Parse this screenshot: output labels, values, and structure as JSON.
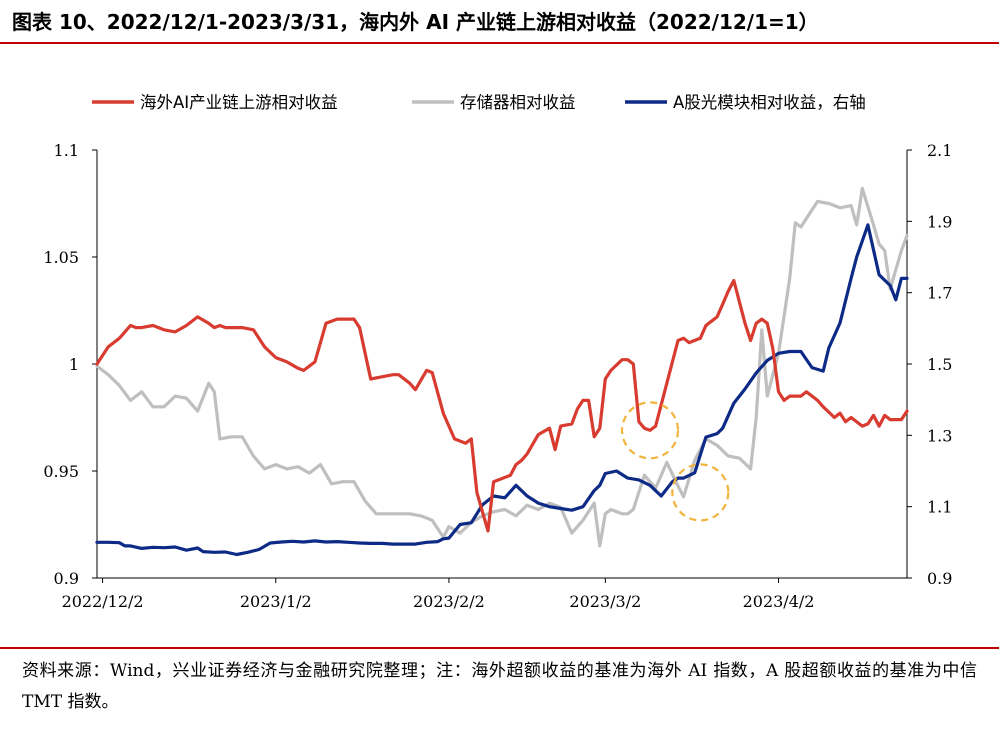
{
  "header": {
    "title": "图表 10、2022/12/1-2023/3/31，海内外 AI 产业链上游相对收益（2022/12/1=1）"
  },
  "footer": {
    "note": "资料来源：Wind，兴业证券经济与金融研究院整理；注：海外超额收益的基准为海外 AI 指数，A 股超额收益的基准为中信 TMT 指数。"
  },
  "colors": {
    "overseas": "#d83b2f",
    "storage": "#bfbfbf",
    "optical": "#0c2a86",
    "accent_rule": "#c00000",
    "highlight_circle": "#f2b33d"
  },
  "chart_data": {
    "type": "line",
    "legend_position": "top",
    "grid": false,
    "x_range": [
      "2022-12-01",
      "2023-04-25"
    ],
    "x_tick_labels": [
      "2022/12/2",
      "2023/1/2",
      "2023/2/2",
      "2023/3/2",
      "2023/4/2"
    ],
    "x_tick_dates": [
      "2022-12-02",
      "2023-01-02",
      "2023-02-02",
      "2023-03-02",
      "2023-04-02"
    ],
    "y_left": {
      "min": 0.9,
      "max": 1.1,
      "ticks": [
        0.9,
        0.95,
        1,
        1.05,
        1.1
      ],
      "tick_labels": [
        "0.9",
        "0.95",
        "1",
        "1.05",
        "1.1"
      ]
    },
    "y_right": {
      "min": 0.9,
      "max": 2.1,
      "ticks": [
        0.9,
        1.1,
        1.3,
        1.5,
        1.7,
        1.9,
        2.1
      ],
      "tick_labels": [
        "0.9",
        "1.1",
        "1.3",
        "1.5",
        "1.7",
        "1.9",
        "2.1"
      ]
    },
    "series": [
      {
        "name": "海外AI产业链上游相对收益",
        "axis": "left",
        "color_key": "overseas",
        "x": [
          "2022-12-01",
          "2022-12-03",
          "2022-12-05",
          "2022-12-06",
          "2022-12-07",
          "2022-12-08",
          "2022-12-09",
          "2022-12-11",
          "2022-12-13",
          "2022-12-15",
          "2022-12-17",
          "2022-12-19",
          "2022-12-21",
          "2022-12-22",
          "2022-12-23",
          "2022-12-24",
          "2022-12-27",
          "2022-12-29",
          "2022-12-31",
          "2023-01-02",
          "2023-01-04",
          "2023-01-06",
          "2023-01-07",
          "2023-01-09",
          "2023-01-11",
          "2023-01-13",
          "2023-01-14",
          "2023-01-16",
          "2023-01-17",
          "2023-01-19",
          "2023-01-21",
          "2023-01-23",
          "2023-01-24",
          "2023-01-26",
          "2023-01-27",
          "2023-01-29",
          "2023-01-30",
          "2023-02-01",
          "2023-02-02",
          "2023-02-03",
          "2023-02-05",
          "2023-02-06",
          "2023-02-07",
          "2023-02-08",
          "2023-02-09",
          "2023-02-10",
          "2023-02-13",
          "2023-02-14",
          "2023-02-15",
          "2023-02-16",
          "2023-02-18",
          "2023-02-20",
          "2023-02-21",
          "2023-02-22",
          "2023-02-24",
          "2023-02-25",
          "2023-02-26",
          "2023-02-27",
          "2023-02-28",
          "2023-03-01",
          "2023-03-02",
          "2023-03-03",
          "2023-03-05",
          "2023-03-06",
          "2023-03-07",
          "2023-03-08",
          "2023-03-09",
          "2023-03-10",
          "2023-03-11",
          "2023-03-13",
          "2023-03-15",
          "2023-03-16",
          "2023-03-17",
          "2023-03-19",
          "2023-03-20",
          "2023-03-21",
          "2023-03-22",
          "2023-03-23",
          "2023-03-24",
          "2023-03-25",
          "2023-03-27",
          "2023-03-28",
          "2023-03-29",
          "2023-03-30",
          "2023-03-31",
          "2023-04-01",
          "2023-04-02",
          "2023-04-03",
          "2023-04-04",
          "2023-04-06",
          "2023-04-07",
          "2023-04-09",
          "2023-04-10",
          "2023-04-12",
          "2023-04-13",
          "2023-04-14",
          "2023-04-15",
          "2023-04-17",
          "2023-04-18",
          "2023-04-19",
          "2023-04-20",
          "2023-04-21",
          "2023-04-22",
          "2023-04-24",
          "2023-04-25"
        ],
        "values": [
          1.0,
          1.008,
          1.012,
          1.015,
          1.018,
          1.017,
          1.017,
          1.018,
          1.016,
          1.015,
          1.018,
          1.022,
          1.019,
          1.017,
          1.018,
          1.017,
          1.017,
          1.016,
          1.008,
          1.003,
          1.001,
          0.998,
          0.997,
          1.001,
          1.019,
          1.021,
          1.021,
          1.021,
          1.017,
          0.993,
          0.994,
          0.995,
          0.995,
          0.991,
          0.988,
          0.997,
          0.996,
          0.977,
          0.971,
          0.965,
          0.963,
          0.965,
          0.94,
          0.931,
          0.922,
          0.945,
          0.948,
          0.953,
          0.955,
          0.958,
          0.967,
          0.97,
          0.96,
          0.971,
          0.972,
          0.979,
          0.983,
          0.983,
          0.966,
          0.97,
          0.993,
          0.997,
          1.002,
          1.002,
          1.0,
          0.973,
          0.97,
          0.969,
          0.971,
          0.991,
          1.011,
          1.012,
          1.01,
          1.012,
          1.018,
          1.02,
          1.022,
          1.028,
          1.034,
          1.039,
          1.019,
          1.011,
          1.019,
          1.021,
          1.019,
          1.007,
          0.987,
          0.983,
          0.985,
          0.985,
          0.987,
          0.983,
          0.98,
          0.975,
          0.977,
          0.973,
          0.975,
          0.971,
          0.972,
          0.976,
          0.971,
          0.976,
          0.974,
          0.974,
          0.978
        ]
      },
      {
        "name": "存储器相对收益",
        "axis": "left",
        "color_key": "storage",
        "x": [
          "2022-12-01",
          "2022-12-03",
          "2022-12-05",
          "2022-12-07",
          "2022-12-09",
          "2022-12-11",
          "2022-12-13",
          "2022-12-15",
          "2022-12-17",
          "2022-12-19",
          "2022-12-21",
          "2022-12-22",
          "2022-12-23",
          "2022-12-25",
          "2022-12-27",
          "2022-12-29",
          "2022-12-31",
          "2023-01-02",
          "2023-01-04",
          "2023-01-06",
          "2023-01-08",
          "2023-01-10",
          "2023-01-12",
          "2023-01-14",
          "2023-01-16",
          "2023-01-18",
          "2023-01-20",
          "2023-01-22",
          "2023-01-24",
          "2023-01-26",
          "2023-01-28",
          "2023-01-30",
          "2023-02-01",
          "2023-02-02",
          "2023-02-04",
          "2023-02-06",
          "2023-02-08",
          "2023-02-10",
          "2023-02-12",
          "2023-02-14",
          "2023-02-16",
          "2023-02-18",
          "2023-02-20",
          "2023-02-22",
          "2023-02-24",
          "2023-02-26",
          "2023-02-28",
          "2023-03-01",
          "2023-03-02",
          "2023-03-03",
          "2023-03-05",
          "2023-03-06",
          "2023-03-07",
          "2023-03-09",
          "2023-03-11",
          "2023-03-13",
          "2023-03-15",
          "2023-03-16",
          "2023-03-18",
          "2023-03-20",
          "2023-03-22",
          "2023-03-24",
          "2023-03-26",
          "2023-03-28",
          "2023-03-29",
          "2023-03-30",
          "2023-03-31",
          "2023-04-01",
          "2023-04-02",
          "2023-04-04",
          "2023-04-05",
          "2023-04-06",
          "2023-04-08",
          "2023-04-09",
          "2023-04-11",
          "2023-04-12",
          "2023-04-13",
          "2023-04-15",
          "2023-04-16",
          "2023-04-17",
          "2023-04-19",
          "2023-04-20",
          "2023-04-21",
          "2023-04-22",
          "2023-04-24",
          "2023-04-25"
        ],
        "values": [
          0.999,
          0.995,
          0.99,
          0.983,
          0.987,
          0.98,
          0.98,
          0.985,
          0.984,
          0.978,
          0.991,
          0.987,
          0.965,
          0.966,
          0.966,
          0.957,
          0.951,
          0.953,
          0.951,
          0.952,
          0.949,
          0.953,
          0.944,
          0.945,
          0.945,
          0.936,
          0.93,
          0.93,
          0.93,
          0.93,
          0.929,
          0.927,
          0.919,
          0.924,
          0.921,
          0.926,
          0.929,
          0.931,
          0.932,
          0.929,
          0.934,
          0.932,
          0.935,
          0.933,
          0.921,
          0.927,
          0.935,
          0.915,
          0.93,
          0.932,
          0.93,
          0.93,
          0.932,
          0.948,
          0.942,
          0.954,
          0.943,
          0.938,
          0.955,
          0.965,
          0.962,
          0.957,
          0.956,
          0.951,
          0.975,
          1.016,
          0.985,
          0.995,
          1.005,
          1.04,
          1.066,
          1.064,
          1.072,
          1.076,
          1.075,
          1.074,
          1.073,
          1.074,
          1.065,
          1.082,
          1.065,
          1.056,
          1.053,
          1.035,
          1.053,
          1.06
        ]
      },
      {
        "name": "A股光模块相对收益，右轴",
        "axis": "right",
        "color_key": "optical",
        "x": [
          "2022-12-01",
          "2022-12-03",
          "2022-12-05",
          "2022-12-06",
          "2022-12-07",
          "2022-12-09",
          "2022-12-11",
          "2022-12-13",
          "2022-12-15",
          "2022-12-17",
          "2022-12-19",
          "2022-12-20",
          "2022-12-22",
          "2022-12-24",
          "2022-12-26",
          "2022-12-28",
          "2022-12-30",
          "2023-01-01",
          "2023-01-03",
          "2023-01-05",
          "2023-01-07",
          "2023-01-09",
          "2023-01-11",
          "2023-01-13",
          "2023-01-15",
          "2023-01-17",
          "2023-01-19",
          "2023-01-21",
          "2023-01-23",
          "2023-01-25",
          "2023-01-27",
          "2023-01-29",
          "2023-01-31",
          "2023-02-01",
          "2023-02-02",
          "2023-02-04",
          "2023-02-06",
          "2023-02-08",
          "2023-02-10",
          "2023-02-12",
          "2023-02-14",
          "2023-02-16",
          "2023-02-18",
          "2023-02-20",
          "2023-02-22",
          "2023-02-24",
          "2023-02-26",
          "2023-02-28",
          "2023-03-01",
          "2023-03-02",
          "2023-03-04",
          "2023-03-06",
          "2023-03-08",
          "2023-03-10",
          "2023-03-12",
          "2023-03-14",
          "2023-03-15",
          "2023-03-16",
          "2023-03-18",
          "2023-03-20",
          "2023-03-22",
          "2023-03-23",
          "2023-03-25",
          "2023-03-27",
          "2023-03-29",
          "2023-03-31",
          "2023-04-01",
          "2023-04-02",
          "2023-04-04",
          "2023-04-06",
          "2023-04-08",
          "2023-04-10",
          "2023-04-11",
          "2023-04-13",
          "2023-04-15",
          "2023-04-16",
          "2023-04-18",
          "2023-04-20",
          "2023-04-22",
          "2023-04-23",
          "2023-04-24",
          "2023-04-25"
        ],
        "values": [
          1.0,
          1.0,
          0.999,
          0.99,
          0.99,
          0.983,
          0.986,
          0.985,
          0.987,
          0.978,
          0.984,
          0.974,
          0.972,
          0.973,
          0.966,
          0.972,
          0.98,
          0.998,
          1.001,
          1.003,
          1.001,
          1.004,
          1.001,
          1.002,
          1.0,
          0.998,
          0.997,
          0.997,
          0.995,
          0.995,
          0.995,
          1.0,
          1.002,
          1.01,
          1.012,
          1.05,
          1.055,
          1.105,
          1.13,
          1.125,
          1.16,
          1.13,
          1.11,
          1.1,
          1.095,
          1.09,
          1.1,
          1.145,
          1.16,
          1.193,
          1.2,
          1.18,
          1.175,
          1.16,
          1.13,
          1.17,
          1.18,
          1.18,
          1.195,
          1.295,
          1.305,
          1.32,
          1.39,
          1.43,
          1.475,
          1.51,
          1.52,
          1.53,
          1.535,
          1.535,
          1.49,
          1.48,
          1.545,
          1.615,
          1.74,
          1.8,
          1.89,
          1.75,
          1.72,
          1.68,
          1.74,
          1.74
        ]
      }
    ]
  }
}
